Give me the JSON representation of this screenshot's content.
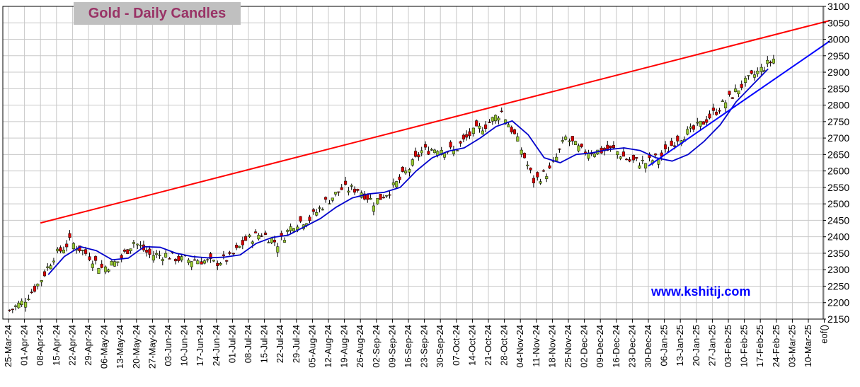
{
  "chart_data": {
    "type": "candlestick",
    "title": "Gold - Daily Candles",
    "watermark": "www.kshitij.com",
    "ylim": [
      2150,
      3100
    ],
    "yticks": [
      2150,
      2200,
      2250,
      2300,
      2350,
      2400,
      2450,
      2500,
      2550,
      2600,
      2650,
      2700,
      2750,
      2800,
      2850,
      2900,
      2950,
      3000,
      3050,
      3100
    ],
    "xtick_labels": [
      "25-Mar-24",
      "01-Apr-24",
      "08-Apr-24",
      "15-Apr-24",
      "22-Apr-24",
      "29-Apr-24",
      "06-May-24",
      "13-May-24",
      "20-May-24",
      "27-May-24",
      "03-Jun-24",
      "10-Jun-24",
      "17-Jun-24",
      "24-Jun-24",
      "01-Jul-24",
      "08-Jul-24",
      "15-Jul-24",
      "22-Jul-24",
      "29-Jul-24",
      "05-Aug-24",
      "12-Aug-24",
      "19-Aug-24",
      "26-Aug-24",
      "02-Sep-24",
      "09-Sep-24",
      "16-Sep-24",
      "23-Sep-24",
      "30-Sep-24",
      "07-Oct-24",
      "14-Oct-24",
      "21-Oct-24",
      "28-Oct-24",
      "04-Nov-24",
      "11-Nov-24",
      "18-Nov-24",
      "25-Nov-24",
      "02-Dec-24",
      "09-Dec-24",
      "16-Dec-24",
      "23-Dec-24",
      "30-Dec-24",
      "06-Jan-25",
      "13-Jan-25",
      "20-Jan-25",
      "27-Jan-25",
      "03-Feb-25",
      "10-Feb-25",
      "17-Feb-25",
      "24-Feb-25",
      "03-Mar-25",
      "10-Mar-25",
      "eof()"
    ],
    "weekly_closes": [
      2200,
      2255,
      2340,
      2385,
      2350,
      2305,
      2325,
      2385,
      2345,
      2345,
      2330,
      2330,
      2320,
      2335,
      2390,
      2410,
      2380,
      2440,
      2455,
      2505,
      2545,
      2545,
      2505,
      2540,
      2595,
      2660,
      2670,
      2660,
      2710,
      2740,
      2780,
      2690,
      2570,
      2600,
      2700,
      2660,
      2660,
      2665,
      2630,
      2625,
      2645,
      2700,
      2725,
      2765,
      2810,
      2860,
      2900,
      2940
    ],
    "moving_average_weekly": [
      null,
      null,
      2285,
      2340,
      2370,
      2358,
      2330,
      2335,
      2370,
      2368,
      2350,
      2340,
      2336,
      2338,
      2345,
      2380,
      2398,
      2405,
      2430,
      2455,
      2490,
      2518,
      2530,
      2535,
      2550,
      2600,
      2640,
      2660,
      2670,
      2700,
      2735,
      2752,
      2710,
      2640,
      2625,
      2650,
      2655,
      2665,
      2670,
      2662,
      2640,
      2630,
      2650,
      2690,
      2740,
      2810,
      2860,
      2910
    ],
    "trendlines": [
      {
        "color": "#ff0000",
        "from": {
          "date": "08-Apr-24",
          "value": 2442
        },
        "to": {
          "date": "eof()",
          "value": 3057
        }
      },
      {
        "color": "#0000ff",
        "from": {
          "date": "30-Dec-24",
          "value": 2615
        },
        "to": {
          "date": "eof()",
          "value": 2995
        }
      }
    ],
    "colors": {
      "up": "#99cc33",
      "down": "#dd0000",
      "ma": "#0000cc",
      "resistance": "#ff0000",
      "support": "#0000ff",
      "grid": "#c8c8c8"
    },
    "grid": true
  }
}
